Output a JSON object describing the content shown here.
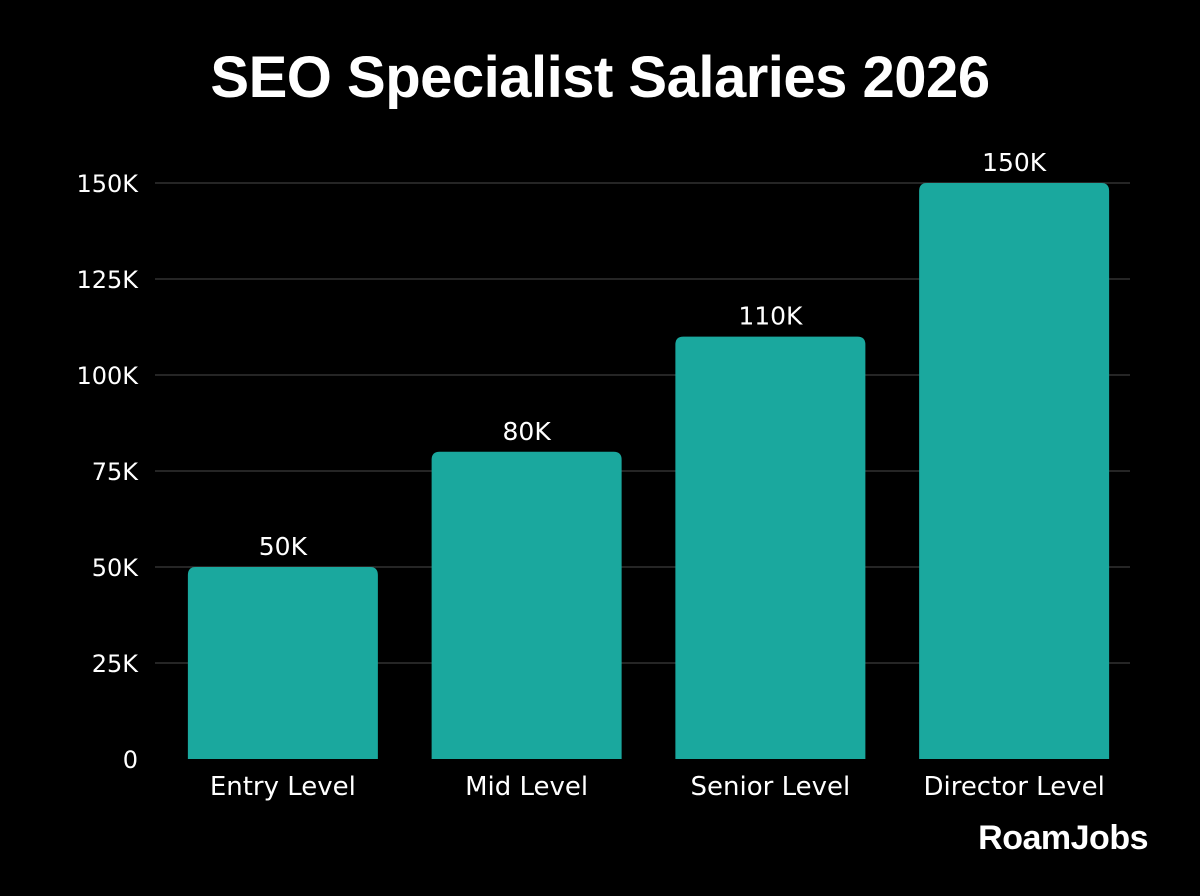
{
  "chart_data": {
    "type": "bar",
    "title": "SEO Specialist Salaries 2026",
    "categories": [
      "Entry Level",
      "Mid Level",
      "Senior Level",
      "Director Level"
    ],
    "values": [
      50000,
      80000,
      110000,
      150000
    ],
    "value_labels": [
      "50K",
      "80K",
      "110K",
      "150K"
    ],
    "ylim": [
      0,
      150000
    ],
    "yticks": [
      0,
      25000,
      50000,
      75000,
      100000,
      125000,
      150000
    ],
    "ytick_labels": [
      "0",
      "25K",
      "50K",
      "75K",
      "100K",
      "125K",
      "150K"
    ],
    "xlabel": "",
    "ylabel": "",
    "grid": true,
    "bar_color": "#1aa89e",
    "background": "#000000"
  },
  "brand": {
    "text": "RoamJobs"
  }
}
